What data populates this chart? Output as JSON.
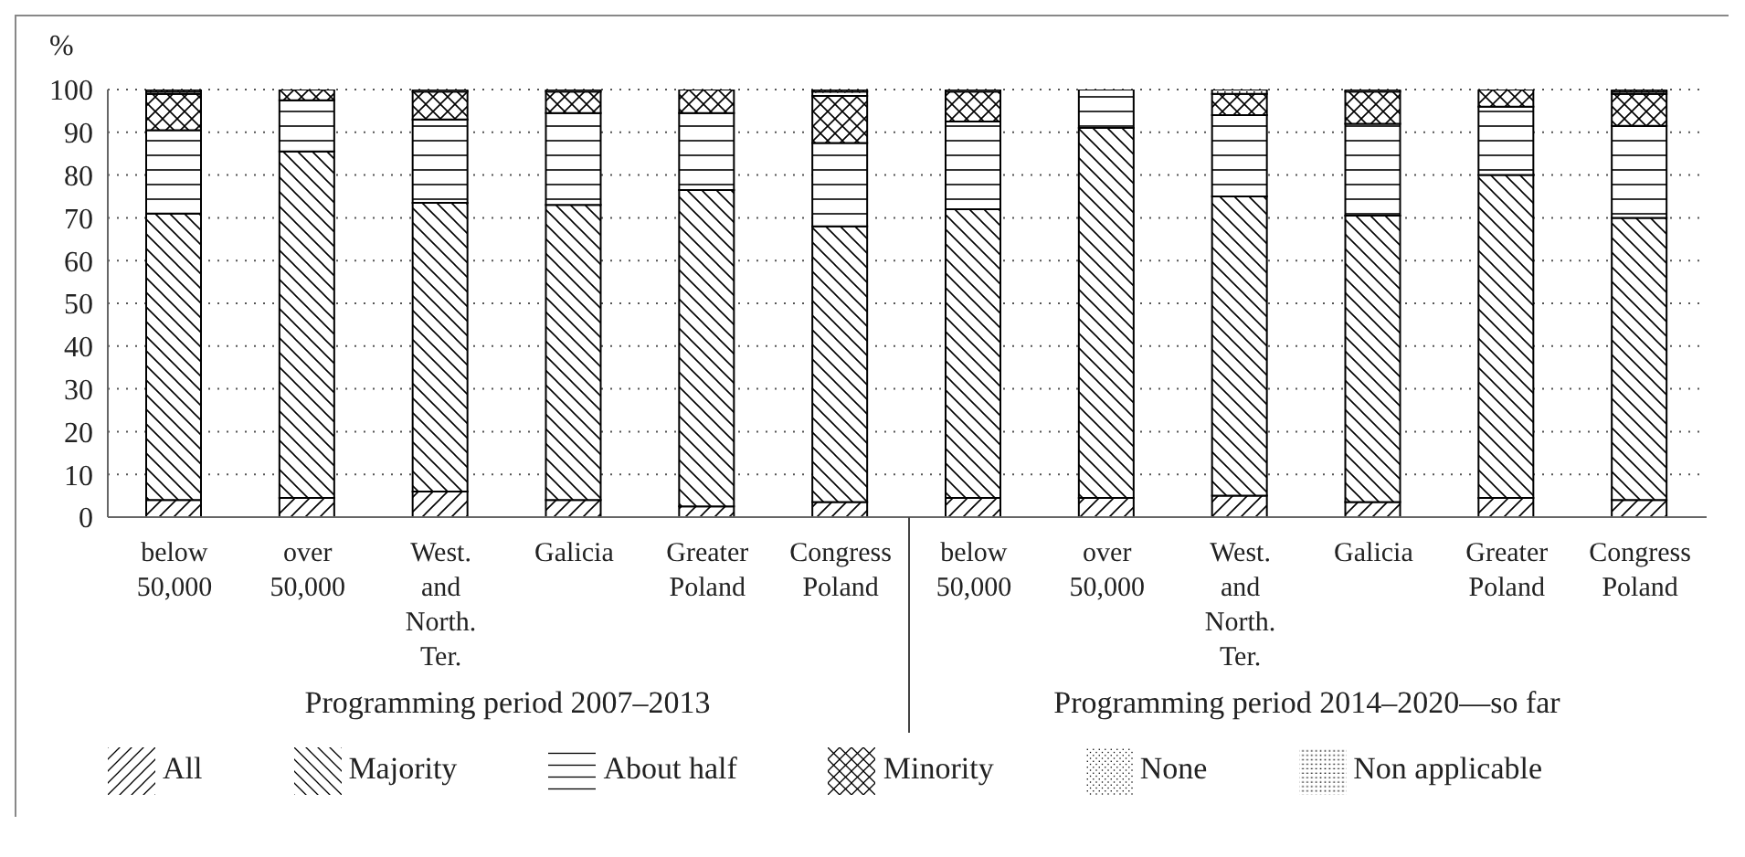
{
  "chart_data": {
    "type": "bar",
    "stacked": true,
    "ylabel": "%",
    "categories": [
      "below 50,000",
      "over 50,000",
      "West. and North. Ter.",
      "Galicia",
      "Greater Poland",
      "Congress Poland",
      "below 50,000",
      "over 50,000",
      "West. and North. Ter.",
      "Galicia",
      "Greater Poland",
      "Congress Poland"
    ],
    "series": [
      {
        "name": "All",
        "color": "#000000",
        "values": [
          4,
          4.5,
          6,
          4,
          2.5,
          3.5,
          4.5,
          4.5,
          5,
          3.5,
          4.5,
          4
        ]
      },
      {
        "name": "Majority",
        "color": "#000000",
        "values": [
          67,
          81,
          67.5,
          69,
          74,
          64.5,
          67.5,
          86.5,
          70,
          67,
          75.5,
          66
        ]
      },
      {
        "name": "About half",
        "color": "#000000",
        "values": [
          19.5,
          12,
          19.5,
          21.5,
          18,
          19.5,
          20.5,
          9,
          19,
          21.5,
          16,
          21.5
        ]
      },
      {
        "name": "Minority",
        "color": "#000000",
        "values": [
          8.5,
          2.5,
          6.5,
          5,
          5.5,
          11,
          7,
          0,
          5,
          7.5,
          4,
          7.5
        ]
      },
      {
        "name": "None",
        "color": "#000000",
        "values": [
          0.5,
          0,
          0.5,
          0.5,
          0,
          1,
          0.5,
          0,
          1,
          0.5,
          0,
          0.5
        ]
      },
      {
        "name": "Non applicable",
        "color": "#000000",
        "values": [
          0.5,
          0,
          0,
          0,
          0,
          0.5,
          0,
          0,
          0,
          0,
          0,
          0.5
        ]
      }
    ],
    "ylim": [
      0,
      100
    ],
    "yticks": [
      0,
      10,
      20,
      30,
      40,
      50,
      60,
      70,
      80,
      90,
      100
    ],
    "grid": "y",
    "legend": "bottom",
    "annotations": [
      "Programming period 2007–2013",
      "Programming period 2014–2020—so far"
    ]
  }
}
